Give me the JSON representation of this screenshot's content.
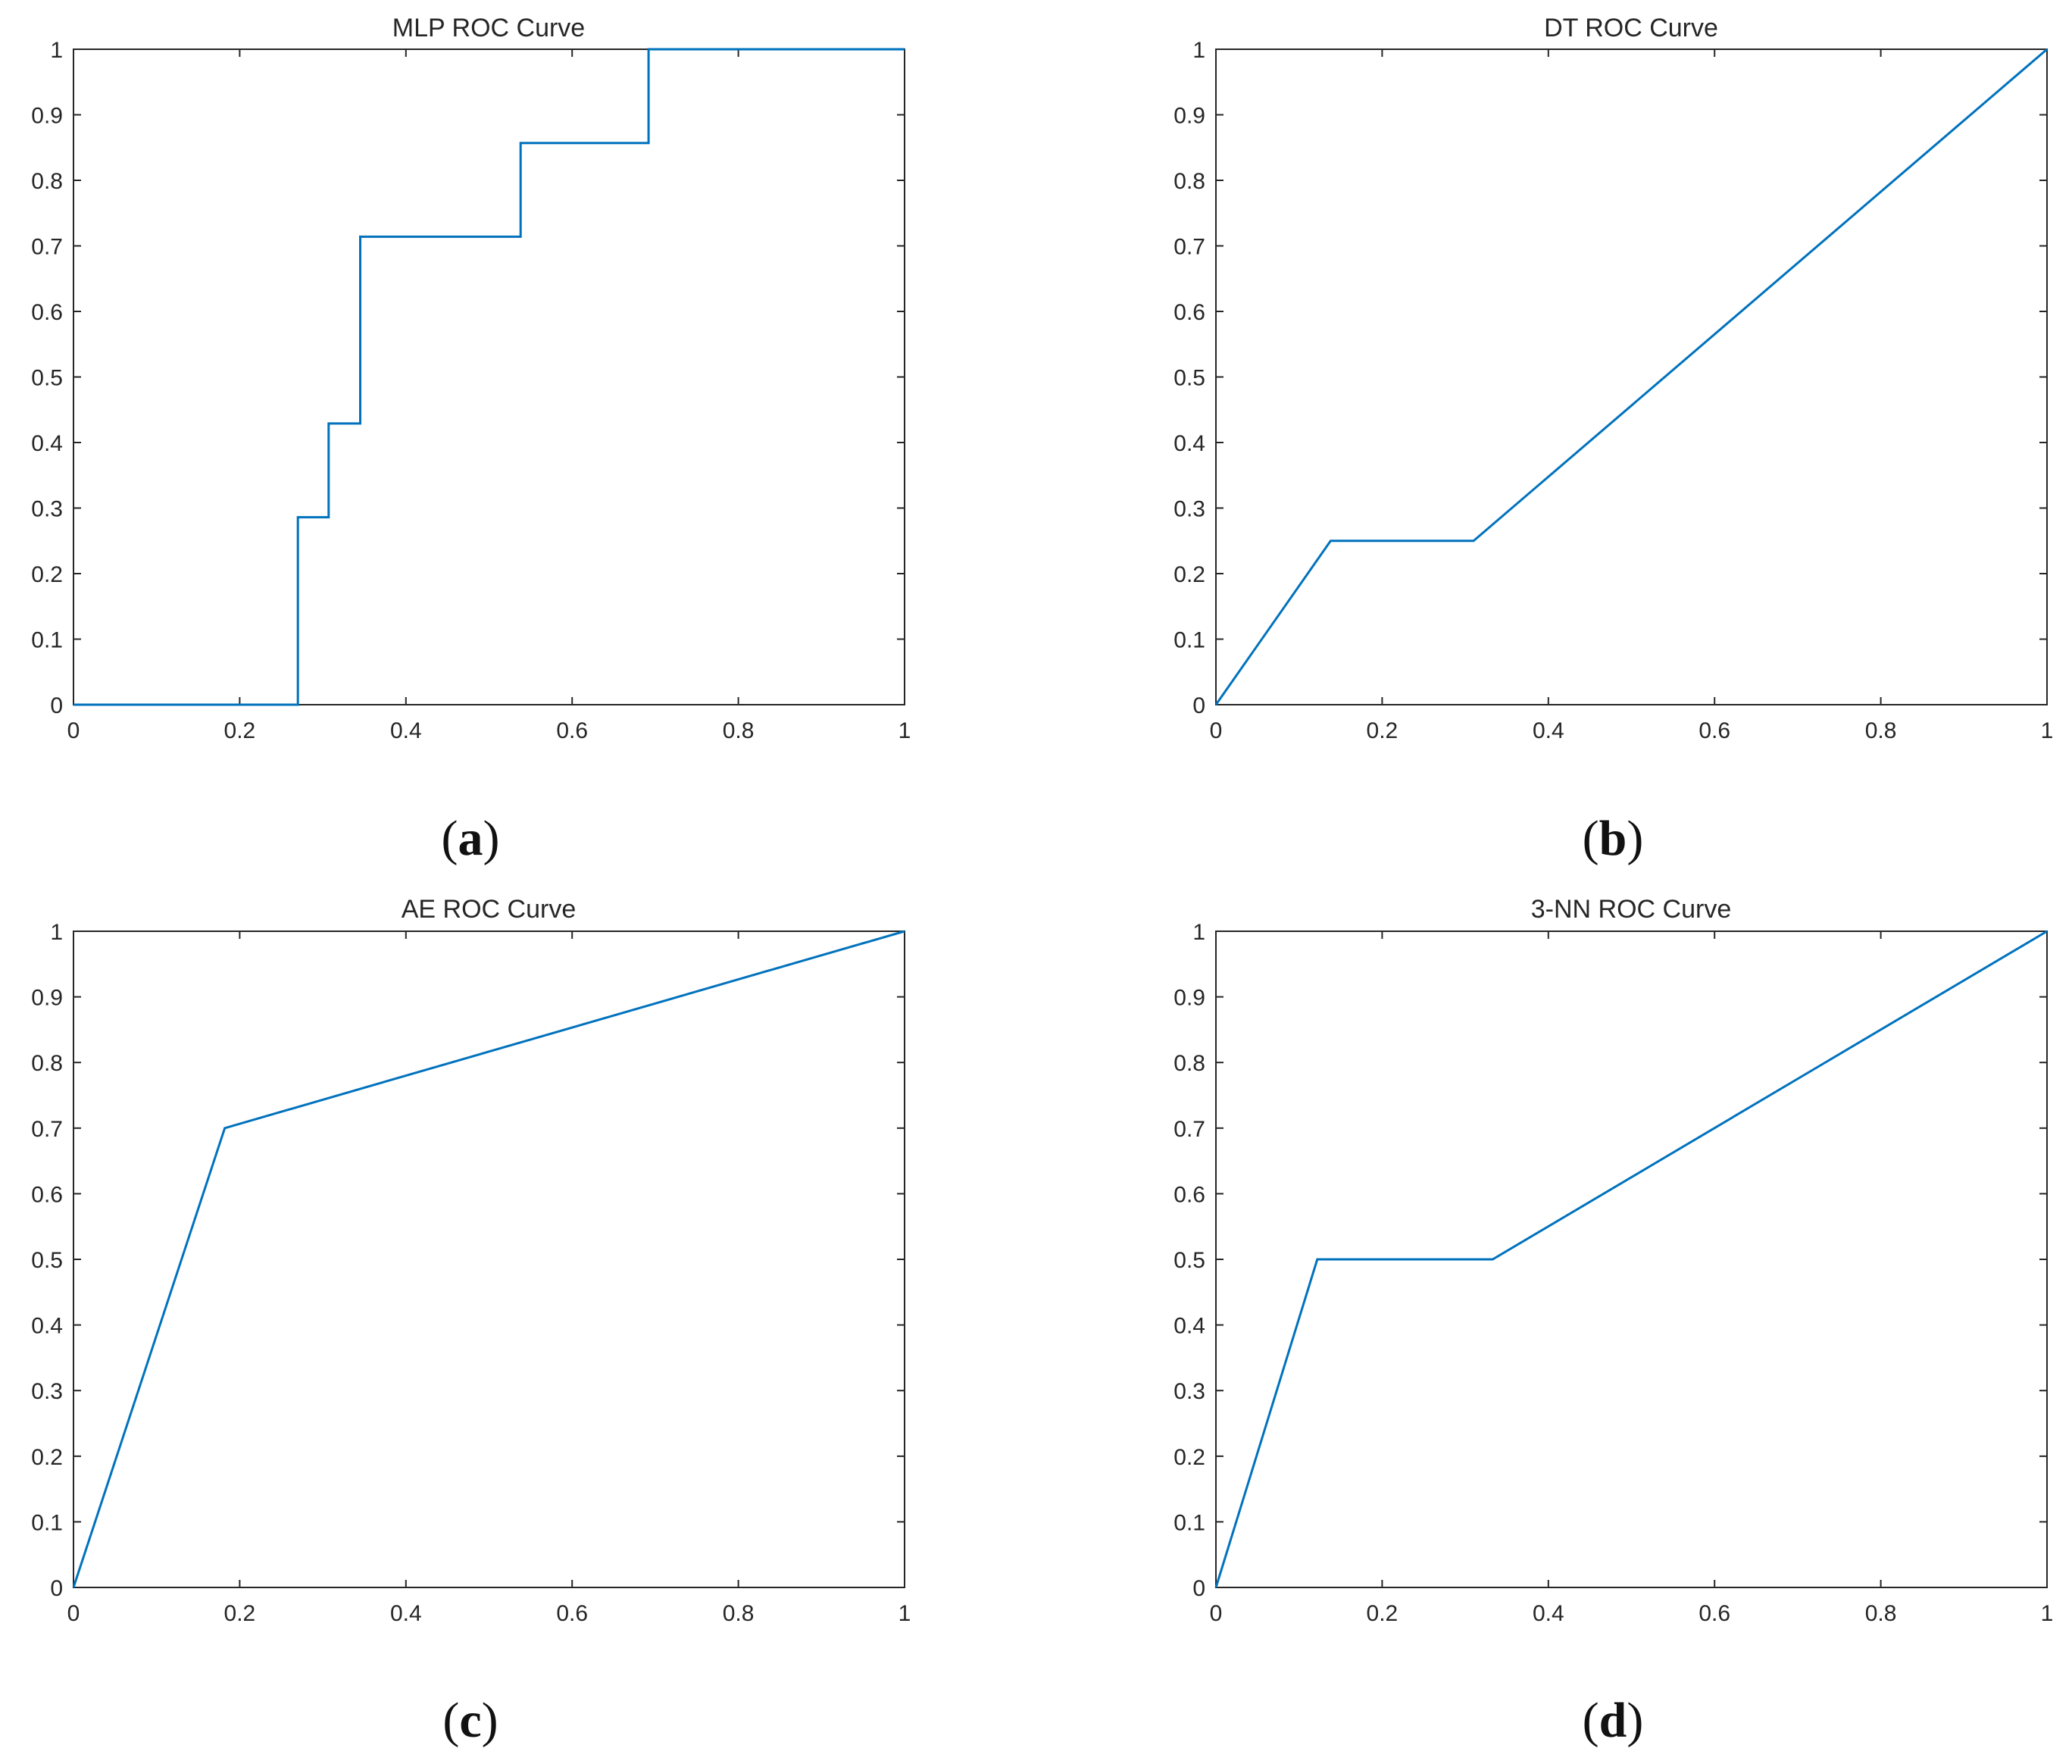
{
  "line_color": "#0072BD",
  "axis_color": "#262626",
  "chart_data": [
    {
      "type": "line",
      "title": "MLP ROC Curve",
      "caption": "a",
      "xlabel": "",
      "ylabel": "",
      "xlim": [
        0,
        1
      ],
      "ylim": [
        0,
        1
      ],
      "xticks": [
        "0",
        "0.2",
        "0.4",
        "0.6",
        "0.8",
        "1"
      ],
      "yticks": [
        "0",
        "0.1",
        "0.2",
        "0.3",
        "0.4",
        "0.5",
        "0.6",
        "0.7",
        "0.8",
        "0.9",
        "1"
      ],
      "series": [
        {
          "name": "MLP",
          "x": [
            0,
            0.27,
            0.27,
            0.307,
            0.307,
            0.345,
            0.345,
            0.538,
            0.538,
            0.692,
            0.692,
            1
          ],
          "y": [
            0,
            0,
            0.286,
            0.286,
            0.429,
            0.429,
            0.714,
            0.714,
            0.857,
            0.857,
            1,
            1
          ]
        }
      ]
    },
    {
      "type": "line",
      "title": "DT ROC Curve",
      "caption": "b",
      "xlabel": "",
      "ylabel": "",
      "xlim": [
        0,
        1
      ],
      "ylim": [
        0,
        1
      ],
      "xticks": [
        "0",
        "0.2",
        "0.4",
        "0.6",
        "0.8",
        "1"
      ],
      "yticks": [
        "0",
        "0.1",
        "0.2",
        "0.3",
        "0.4",
        "0.5",
        "0.6",
        "0.7",
        "0.8",
        "0.9",
        "1"
      ],
      "series": [
        {
          "name": "DT",
          "x": [
            0,
            0.138,
            0.31,
            1
          ],
          "y": [
            0,
            0.25,
            0.25,
            1
          ]
        }
      ]
    },
    {
      "type": "line",
      "title": "AE ROC Curve",
      "caption": "c",
      "xlabel": "",
      "ylabel": "",
      "xlim": [
        0,
        1
      ],
      "ylim": [
        0,
        1
      ],
      "xticks": [
        "0",
        "0.2",
        "0.4",
        "0.6",
        "0.8",
        "1"
      ],
      "yticks": [
        "0",
        "0.1",
        "0.2",
        "0.3",
        "0.4",
        "0.5",
        "0.6",
        "0.7",
        "0.8",
        "0.9",
        "1"
      ],
      "series": [
        {
          "name": "AE",
          "x": [
            0,
            0.182,
            1
          ],
          "y": [
            0,
            0.7,
            1
          ]
        }
      ]
    },
    {
      "type": "line",
      "title": "3-NN ROC Curve",
      "caption": "d",
      "xlabel": "",
      "ylabel": "",
      "xlim": [
        0,
        1
      ],
      "ylim": [
        0,
        1
      ],
      "xticks": [
        "0",
        "0.2",
        "0.4",
        "0.6",
        "0.8",
        "1"
      ],
      "yticks": [
        "0",
        "0.1",
        "0.2",
        "0.3",
        "0.4",
        "0.5",
        "0.6",
        "0.7",
        "0.8",
        "0.9",
        "1"
      ],
      "series": [
        {
          "name": "3-NN",
          "x": [
            0,
            0.122,
            0.333,
            1
          ],
          "y": [
            0,
            0.5,
            0.5,
            1
          ]
        }
      ]
    }
  ]
}
